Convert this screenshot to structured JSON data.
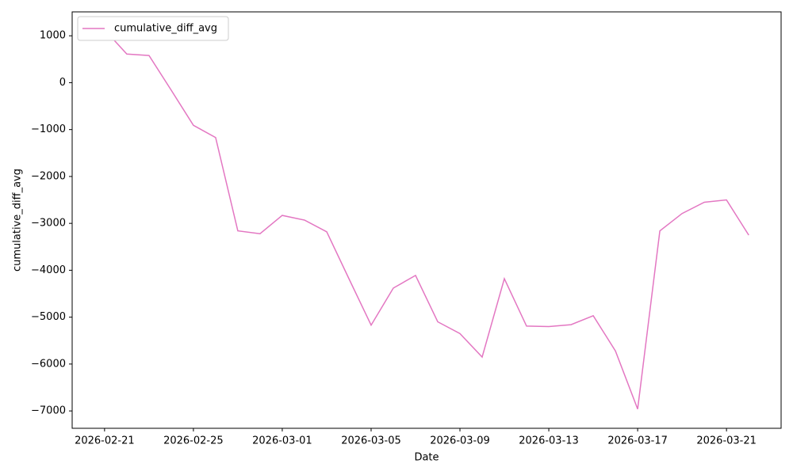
{
  "chart_data": {
    "type": "line",
    "xlabel": "Date",
    "ylabel": "cumulative_diff_avg",
    "x": [
      "2026-02-21",
      "2026-02-22",
      "2026-02-23",
      "2026-02-24",
      "2026-02-25",
      "2026-02-26",
      "2026-02-27",
      "2026-02-28",
      "2026-03-01",
      "2026-03-02",
      "2026-03-03",
      "2026-03-04",
      "2026-03-05",
      "2026-03-06",
      "2026-03-07",
      "2026-03-08",
      "2026-03-09",
      "2026-03-10",
      "2026-03-11",
      "2026-03-12",
      "2026-03-13",
      "2026-03-14",
      "2026-03-15",
      "2026-03-16",
      "2026-03-17",
      "2026-03-18",
      "2026-03-19",
      "2026-03-20",
      "2026-03-21",
      "2026-03-22"
    ],
    "series": [
      {
        "name": "cumulative_diff_avg",
        "color": "#e377c2",
        "values": [
          1130,
          610,
          580,
          -160,
          -910,
          -1170,
          -3160,
          -3220,
          -2830,
          -2930,
          -3180,
          -4180,
          -5170,
          -4380,
          -4110,
          -5100,
          -5350,
          -5850,
          -4180,
          -5190,
          -5200,
          -5160,
          -4970,
          -5720,
          -6960,
          -3160,
          -2790,
          -2550,
          -2500,
          -3250
        ]
      }
    ],
    "xlim": [
      "2026-02-19T13:00",
      "2026-03-23T11:00"
    ],
    "xticks": [
      "2026-02-21",
      "2026-02-25",
      "2026-03-01",
      "2026-03-05",
      "2026-03-09",
      "2026-03-13",
      "2026-03-17",
      "2026-03-21"
    ],
    "ylim": [
      -7370,
      1510
    ],
    "yticks": [
      {
        "value": -7000,
        "label": "−7000"
      },
      {
        "value": -6000,
        "label": "−6000"
      },
      {
        "value": -5000,
        "label": "−5000"
      },
      {
        "value": -4000,
        "label": "−4000"
      },
      {
        "value": -3000,
        "label": "−3000"
      },
      {
        "value": -2000,
        "label": "−2000"
      },
      {
        "value": -1000,
        "label": "−1000"
      },
      0,
      1000
    ],
    "legend": "upper left"
  }
}
